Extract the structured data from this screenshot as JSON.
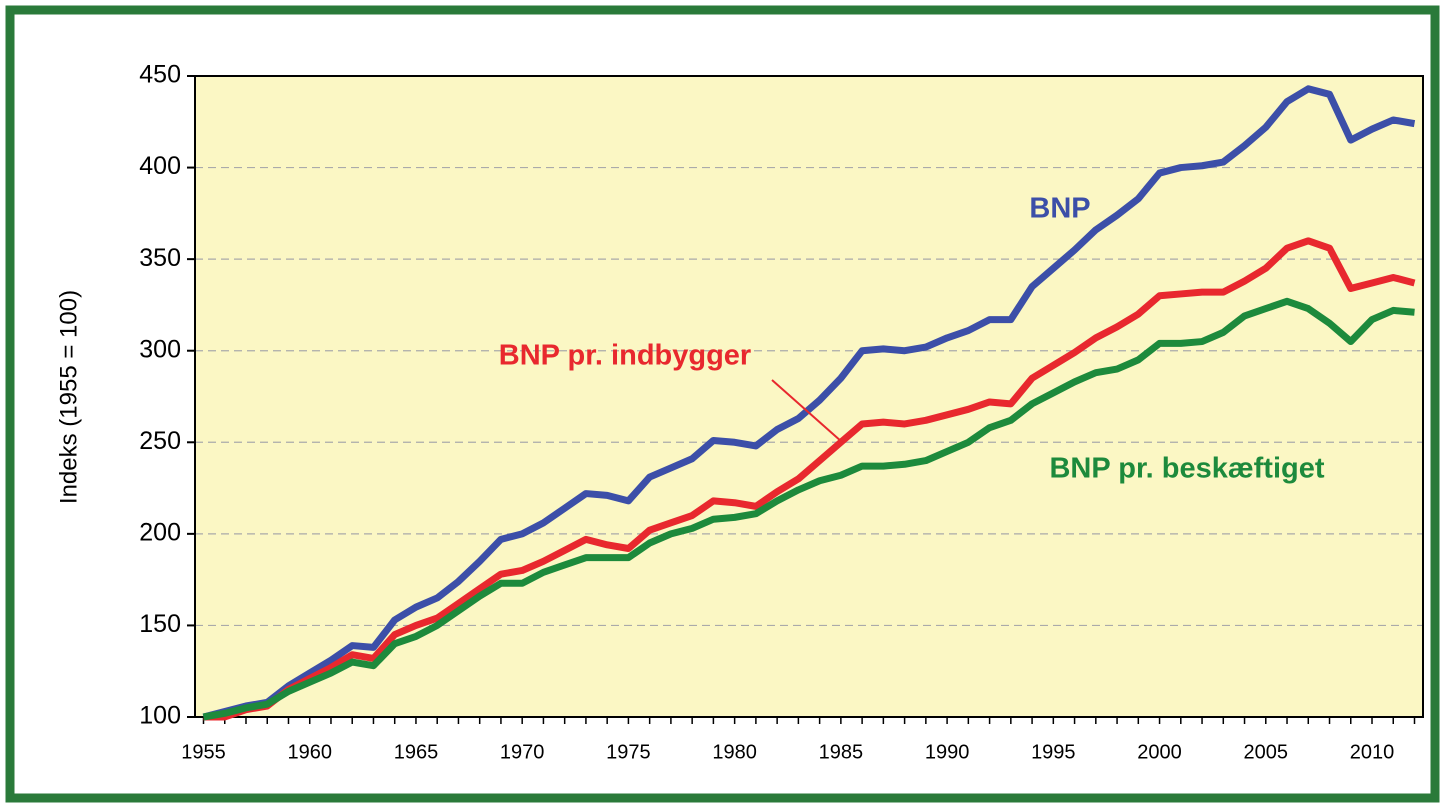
{
  "chart_data": {
    "type": "line",
    "ylabel": "Indeks (1955 = 100)",
    "x": [
      1955,
      1956,
      1957,
      1958,
      1959,
      1960,
      1961,
      1962,
      1963,
      1964,
      1965,
      1966,
      1967,
      1968,
      1969,
      1970,
      1971,
      1972,
      1973,
      1974,
      1975,
      1976,
      1977,
      1978,
      1979,
      1980,
      1981,
      1982,
      1983,
      1984,
      1985,
      1986,
      1987,
      1988,
      1989,
      1990,
      1991,
      1992,
      1993,
      1994,
      1995,
      1996,
      1997,
      1998,
      1999,
      2000,
      2001,
      2002,
      2003,
      2004,
      2005,
      2006,
      2007,
      2008,
      2009,
      2010,
      2011,
      2012
    ],
    "series": [
      {
        "name": "BNP",
        "color": "#3c4fa8",
        "values": [
          100,
          103,
          106,
          108,
          117,
          124,
          131,
          139,
          138,
          153,
          160,
          165,
          174,
          185,
          197,
          200,
          206,
          214,
          222,
          221,
          218,
          231,
          236,
          241,
          251,
          250,
          248,
          257,
          263,
          273,
          285,
          300,
          301,
          300,
          302,
          307,
          311,
          317,
          317,
          335,
          345,
          355,
          366,
          374,
          383,
          397,
          400,
          401,
          403,
          412,
          422,
          436,
          443,
          440,
          415,
          421,
          426,
          424
        ]
      },
      {
        "name": "BNP pr. indbygger",
        "color": "#e8282e",
        "values": [
          100,
          100,
          104,
          106,
          115,
          121,
          127,
          134,
          132,
          145,
          150,
          154,
          162,
          170,
          178,
          180,
          185,
          191,
          197,
          194,
          192,
          202,
          206,
          210,
          218,
          217,
          215,
          223,
          230,
          240,
          250,
          260,
          261,
          260,
          262,
          265,
          268,
          272,
          271,
          285,
          292,
          299,
          307,
          313,
          320,
          330,
          331,
          332,
          332,
          338,
          345,
          356,
          360,
          356,
          334,
          337,
          340,
          337
        ]
      },
      {
        "name": "BNP pr. beskæftiget",
        "color": "#1d8a3c",
        "values": [
          100,
          102,
          105,
          107,
          114,
          119,
          124,
          130,
          128,
          140,
          144,
          150,
          158,
          166,
          173,
          173,
          179,
          183,
          187,
          187,
          187,
          195,
          200,
          203,
          208,
          209,
          211,
          218,
          224,
          229,
          232,
          237,
          237,
          238,
          240,
          245,
          250,
          258,
          262,
          271,
          277,
          283,
          288,
          290,
          295,
          304,
          304,
          305,
          310,
          319,
          323,
          327,
          323,
          315,
          305,
          317,
          322,
          321
        ]
      }
    ],
    "xlim": [
      1954.6,
      2012.4
    ],
    "xticks": [
      1955,
      1960,
      1965,
      1970,
      1975,
      1980,
      1985,
      1990,
      1995,
      2000,
      2005,
      2010
    ],
    "ylim": [
      100,
      450
    ],
    "yticks": [
      100,
      150,
      200,
      250,
      300,
      350,
      400,
      450
    ],
    "grid": true
  }
}
